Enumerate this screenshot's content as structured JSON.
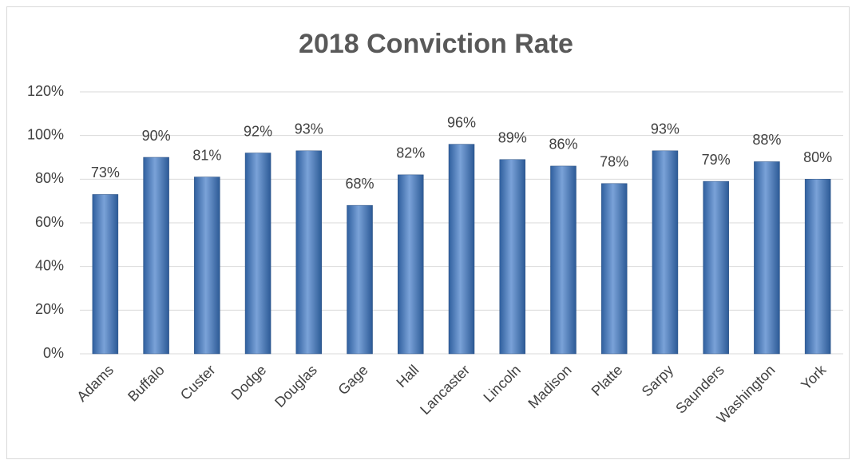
{
  "chart_data": {
    "type": "bar",
    "title": "2018 Conviction Rate",
    "categories": [
      "Adams",
      "Buffalo",
      "Custer",
      "Dodge",
      "Douglas",
      "Gage",
      "Hall",
      "Lancaster",
      "Lincoln",
      "Madison",
      "Platte",
      "Sarpy",
      "Saunders",
      "Washington",
      "York"
    ],
    "values": [
      73,
      90,
      81,
      92,
      93,
      68,
      82,
      96,
      89,
      86,
      78,
      93,
      79,
      88,
      80
    ],
    "value_labels": [
      "73%",
      "90%",
      "81%",
      "92%",
      "93%",
      "68%",
      "82%",
      "96%",
      "89%",
      "86%",
      "78%",
      "93%",
      "79%",
      "88%",
      "80%"
    ],
    "color": "#4f81bd",
    "ylim": [
      0,
      120
    ],
    "yticks": [
      {
        "value": 0,
        "label": "0%"
      },
      {
        "value": 20,
        "label": "20%"
      },
      {
        "value": 40,
        "label": "40%"
      },
      {
        "value": 60,
        "label": "60%"
      },
      {
        "value": 80,
        "label": "80%"
      },
      {
        "value": 100,
        "label": "100%"
      },
      {
        "value": 120,
        "label": "120%"
      }
    ],
    "grid": true
  }
}
